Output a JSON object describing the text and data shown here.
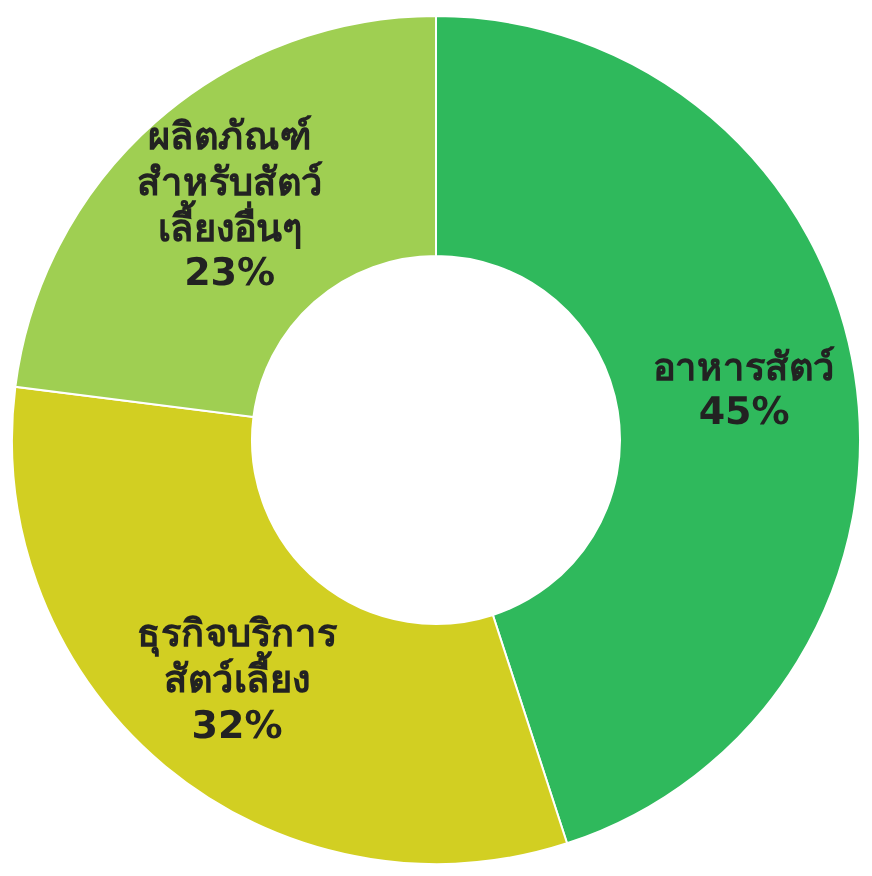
{
  "chart_data": {
    "type": "donut",
    "categories": [
      "อาหารสัตว์",
      "ธุรกิจบริการสัตว์เลี้ยง",
      "ผลิตภัณฑ์สำหรับสัตว์เลี้ยงอื่นๆ"
    ],
    "values": [
      45,
      32,
      23
    ],
    "colors": [
      "#2fb95c",
      "#d2cf22",
      "#9fcf52"
    ],
    "value_labels": [
      "45%",
      "32%",
      "23%"
    ]
  }
}
